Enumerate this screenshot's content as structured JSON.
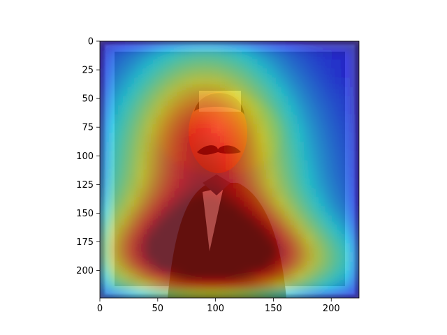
{
  "chart_data": {
    "type": "heatmap",
    "title": "",
    "xlabel": "",
    "ylabel": "",
    "xlim": [
      0,
      224
    ],
    "ylim": [
      224,
      0
    ],
    "x_ticks": [
      0,
      50,
      100,
      150,
      200
    ],
    "y_ticks": [
      0,
      25,
      50,
      75,
      100,
      125,
      150,
      175,
      200
    ],
    "x_tick_labels": [
      "0",
      "50",
      "100",
      "150",
      "200"
    ],
    "y_tick_labels": [
      "0",
      "25",
      "50",
      "75",
      "100",
      "125",
      "150",
      "175",
      "200"
    ],
    "grid": false,
    "colormap": "jet",
    "background_image": "framed portrait photograph of a man with a mustache, dark jacket and bow tie",
    "heat_peaks": [
      {
        "x": 92,
        "y": 120,
        "sx": 70,
        "sy": 70,
        "w": 0.45
      },
      {
        "x": 92,
        "y": 178,
        "sx": 62,
        "sy": 30,
        "w": 0.55
      },
      {
        "x": 115,
        "y": 195,
        "sx": 85,
        "sy": 22,
        "w": 0.3
      },
      {
        "x": 90,
        "y": 72,
        "sx": 45,
        "sy": 55,
        "w": 0.35
      }
    ]
  }
}
